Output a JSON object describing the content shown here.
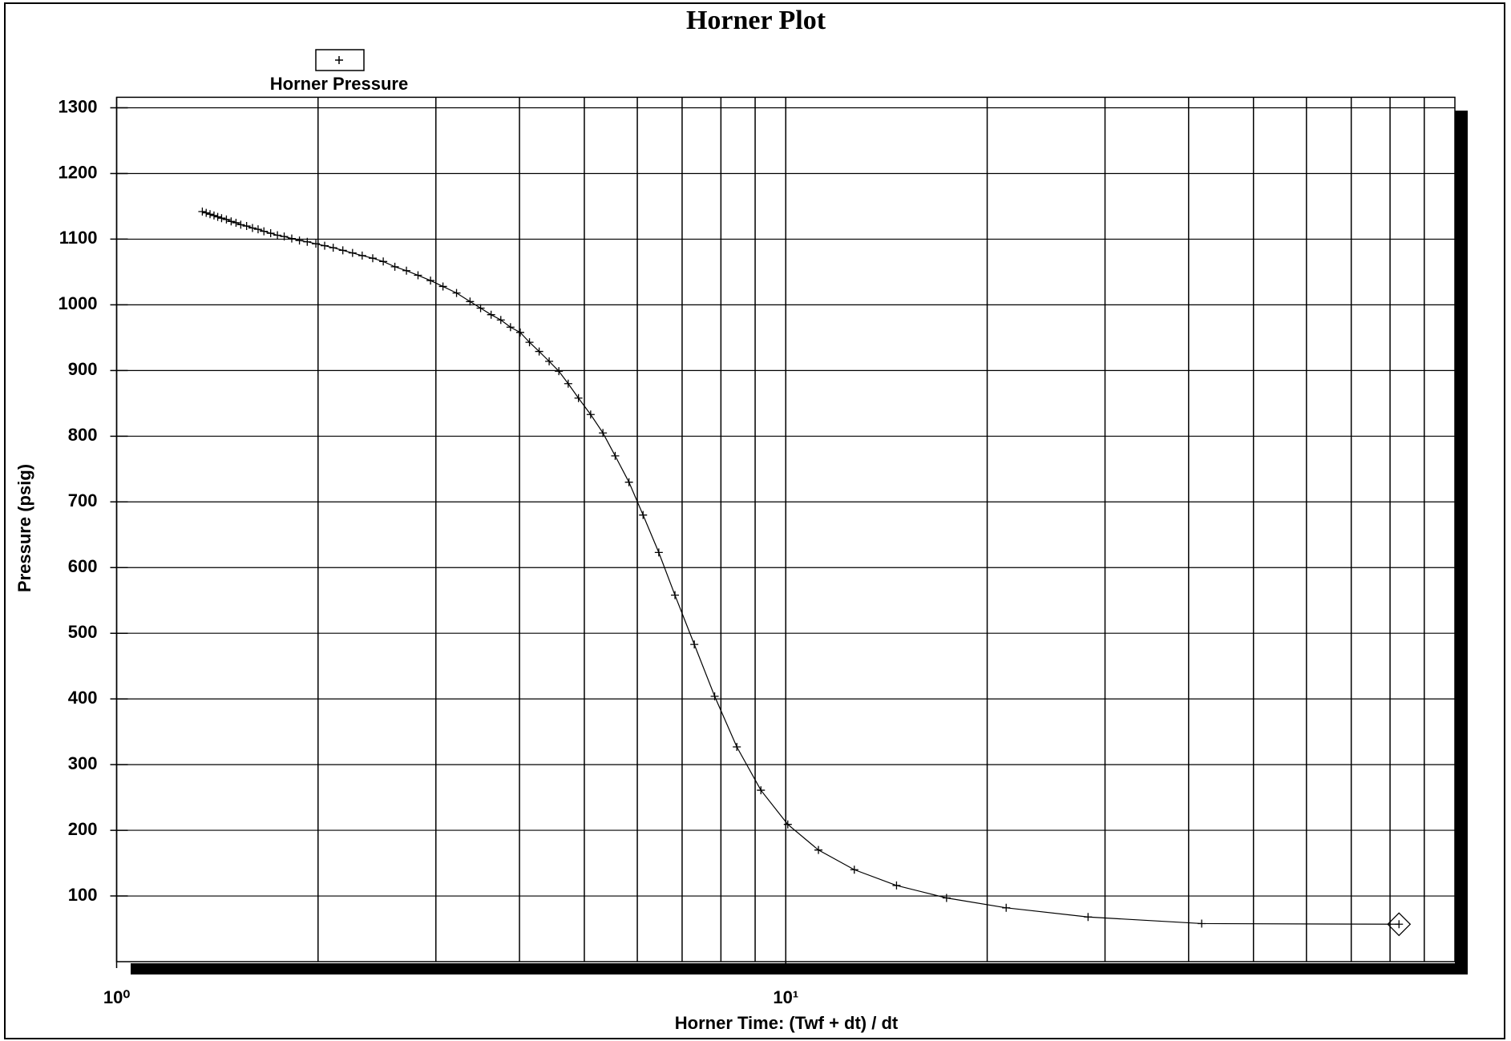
{
  "chart_data": {
    "type": "line",
    "title": "Horner Plot",
    "xlabel": "Horner Time: (Twf + dt) / dt",
    "ylabel": "Pressure (psig)",
    "xscale": "log",
    "xlim": [
      1,
      100
    ],
    "xticks": [
      {
        "value": 1,
        "label": "10⁰"
      },
      {
        "value": 10,
        "label": "10¹"
      }
    ],
    "xgrid": [
      2,
      3,
      4,
      5,
      6,
      7,
      8,
      9,
      20,
      30,
      40,
      50,
      60,
      70,
      80,
      90
    ],
    "ylim": [
      0,
      1316
    ],
    "yticks": [
      100,
      200,
      300,
      400,
      500,
      600,
      700,
      800,
      900,
      1000,
      1100,
      1200,
      1300
    ],
    "grid": true,
    "series": [
      {
        "name": "Horner Pressure",
        "color": "#000000",
        "x": [
          1.343,
          1.361,
          1.379,
          1.398,
          1.416,
          1.435,
          1.459,
          1.483,
          1.508,
          1.533,
          1.564,
          1.596,
          1.627,
          1.66,
          1.699,
          1.739,
          1.78,
          1.827,
          1.876,
          1.927,
          1.985,
          2.046,
          2.107,
          2.178,
          2.252,
          2.328,
          2.414,
          2.503,
          2.605,
          2.711,
          2.821,
          2.945,
          3.074,
          3.221,
          3.374,
          3.499,
          3.628,
          3.751,
          3.878,
          4.01,
          4.14,
          4.28,
          4.43,
          4.58,
          4.73,
          4.9,
          5.11,
          5.33,
          5.56,
          5.83,
          6.12,
          6.46,
          6.83,
          7.3,
          7.83,
          8.45,
          9.18,
          10.07,
          11.19,
          12.66,
          14.64,
          17.39,
          21.35,
          28.3,
          41.84,
          82.5
        ],
        "values": [
          1142,
          1140,
          1138,
          1136,
          1134,
          1132,
          1130,
          1127,
          1125,
          1122,
          1120,
          1117,
          1115,
          1112,
          1109,
          1106,
          1104,
          1101,
          1098,
          1096,
          1093,
          1090,
          1087,
          1083,
          1079,
          1075,
          1071,
          1066,
          1058,
          1052,
          1045,
          1037,
          1028,
          1018,
          1005,
          995,
          985,
          977,
          966,
          958,
          943,
          929,
          914,
          899,
          880,
          858,
          833,
          805,
          770,
          730,
          680,
          623,
          558,
          483,
          404,
          327,
          261,
          209,
          170,
          140,
          116,
          97,
          82,
          68,
          58,
          57
        ]
      }
    ]
  }
}
